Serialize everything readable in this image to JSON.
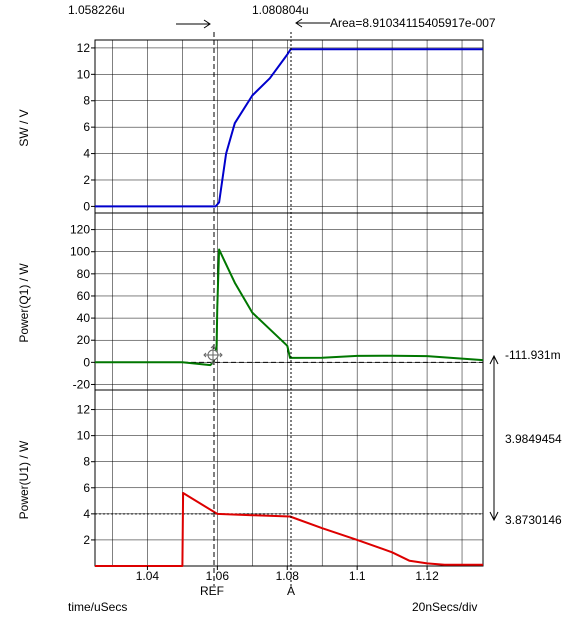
{
  "header": {
    "ref_cursor_value": "1.058226u",
    "a_cursor_value": "1.080804u",
    "area_readout": "Area=8.91034115405917e-007"
  },
  "plots": [
    {
      "ylabel": "SW / V",
      "y_ticks": [
        "0",
        "2",
        "4",
        "6",
        "8",
        "10",
        "12"
      ]
    },
    {
      "ylabel": "Power(Q1) / W",
      "y_ticks": [
        "-20",
        "0",
        "20",
        "40",
        "60",
        "80",
        "100",
        "120"
      ]
    },
    {
      "ylabel": "Power(U1) / W",
      "y_ticks": [
        "2",
        "4",
        "6",
        "8",
        "10",
        "12"
      ]
    }
  ],
  "x_axis": {
    "tick_labels": [
      "1.04",
      "1.06",
      "1.08",
      "1.1",
      "1.12"
    ],
    "unit_label": "time/uSecs",
    "scale_label": "20nSecs/div"
  },
  "cursors": {
    "ref_label": "REF",
    "a_label": "A"
  },
  "readouts": {
    "q1_cursor_level": "-111.931m",
    "u1_delta": "3.9849454",
    "u1_cursor_level": "3.8730146"
  },
  "colors": {
    "sw_trace": "#0000cc",
    "q1_trace": "#007700",
    "u1_trace": "#dd0000",
    "grid": "#000000",
    "background": "#ffffff"
  },
  "chart_data": [
    {
      "type": "line",
      "series": [
        {
          "x": [
            1.025,
            1.0595,
            1.0605,
            1.0625,
            1.065,
            1.07,
            1.075,
            1.08,
            1.081,
            1.09,
            1.1,
            1.11,
            1.12,
            1.136
          ],
          "y": [
            0,
            0,
            0.3,
            4.0,
            6.3,
            8.4,
            9.7,
            11.5,
            11.9,
            11.9,
            11.9,
            11.9,
            11.9,
            11.9
          ]
        }
      ],
      "xlabel": "",
      "ylabel": "SW / V",
      "xlim": [
        1.025,
        1.136
      ],
      "ylim": [
        -0.5,
        12.6
      ]
    },
    {
      "type": "line",
      "series": [
        {
          "x": [
            1.025,
            1.05,
            1.058,
            1.059,
            1.0598,
            1.06,
            1.0605,
            1.062,
            1.065,
            1.07,
            1.075,
            1.08,
            1.0808,
            1.09,
            1.1,
            1.11,
            1.12,
            1.136
          ],
          "y": [
            0,
            0,
            -2.5,
            1,
            15,
            50,
            102,
            92,
            72,
            45,
            30,
            15,
            4,
            4.2,
            5.8,
            6.0,
            5.6,
            2.0
          ]
        }
      ],
      "xlabel": "",
      "ylabel": "Power(Q1) / W",
      "xlim": [
        1.025,
        1.136
      ],
      "ylim": [
        -25,
        135
      ]
    },
    {
      "type": "line",
      "series": [
        {
          "x": [
            1.025,
            1.05,
            1.0502,
            1.06,
            1.07,
            1.0808,
            1.09,
            1.1,
            1.11,
            1.115,
            1.12,
            1.125,
            1.136
          ],
          "y": [
            0,
            0,
            5.6,
            4.0,
            3.9,
            3.8,
            2.9,
            2.0,
            1.05,
            0.4,
            0.2,
            0.1,
            0.1
          ]
        }
      ],
      "xlabel": "",
      "ylabel": "Power(U1) / W",
      "xlim": [
        1.025,
        1.136
      ],
      "ylim": [
        0,
        13.5
      ]
    }
  ]
}
